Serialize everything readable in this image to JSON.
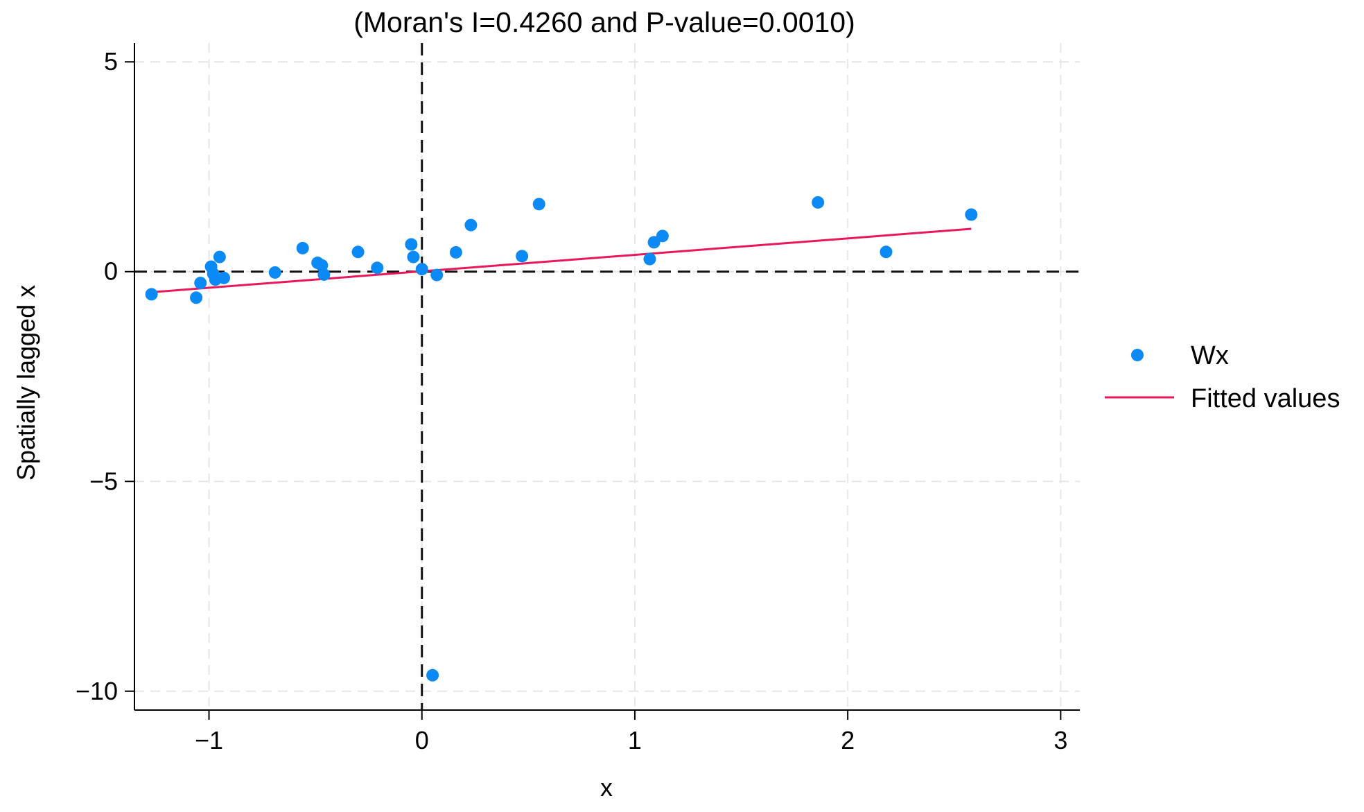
{
  "chart_data": {
    "type": "scatter",
    "title": "(Moran's I=0.4260 and P-value=0.0010)",
    "xlabel": "x",
    "ylabel": "Spatially lagged x",
    "xlim": [
      -1.35,
      3.09
    ],
    "ylim": [
      -10.45,
      5.45
    ],
    "x_ticks": [
      -1,
      0,
      1,
      2,
      3
    ],
    "x_tick_labels": [
      "−1",
      "0",
      "1",
      "2",
      "3"
    ],
    "y_ticks": [
      -10,
      -5,
      0,
      5
    ],
    "y_tick_labels": [
      "−10",
      "−5",
      "0",
      "5"
    ],
    "grid": true,
    "reference_lines": {
      "x": 0,
      "y": 0
    },
    "legend_position": "right",
    "series": [
      {
        "name": "Wx",
        "kind": "scatter",
        "color": "#0b8af5",
        "points": [
          [
            -1.27,
            -0.54
          ],
          [
            -1.06,
            -0.62
          ],
          [
            -1.04,
            -0.27
          ],
          [
            -0.99,
            0.12
          ],
          [
            -0.98,
            -0.05
          ],
          [
            -0.97,
            -0.19
          ],
          [
            -0.95,
            0.35
          ],
          [
            -0.93,
            -0.15
          ],
          [
            -0.69,
            -0.02
          ],
          [
            -0.56,
            0.56
          ],
          [
            -0.49,
            0.21
          ],
          [
            -0.47,
            0.15
          ],
          [
            -0.46,
            -0.07
          ],
          [
            -0.3,
            0.47
          ],
          [
            -0.21,
            0.09
          ],
          [
            -0.05,
            0.65
          ],
          [
            -0.04,
            0.35
          ],
          [
            0.0,
            0.06
          ],
          [
            0.05,
            -9.62
          ],
          [
            0.07,
            -0.08
          ],
          [
            0.16,
            0.46
          ],
          [
            0.23,
            1.11
          ],
          [
            0.47,
            0.37
          ],
          [
            0.55,
            1.61
          ],
          [
            1.07,
            0.3
          ],
          [
            1.09,
            0.7
          ],
          [
            1.13,
            0.85
          ],
          [
            1.86,
            1.65
          ],
          [
            2.18,
            0.47
          ],
          [
            2.58,
            1.36
          ]
        ]
      },
      {
        "name": "Fitted values",
        "kind": "line",
        "color": "#e8185a",
        "points": [
          [
            -1.27,
            -0.49
          ],
          [
            2.58,
            1.02
          ]
        ]
      }
    ]
  }
}
